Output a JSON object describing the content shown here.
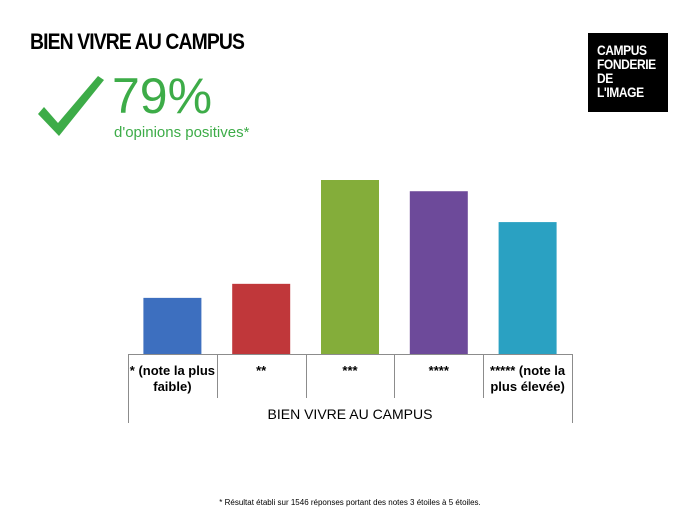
{
  "page": {
    "title": "BIEN VIVRE AU CAMPUS",
    "logo_lines": [
      "CAMPUS",
      "FONDERIE",
      "DE",
      "L'IMAGE"
    ],
    "kpi": {
      "value": "79%",
      "label": "d'opinions positives*",
      "icon": "checkmark-icon",
      "color": "#3dac48"
    },
    "footnote": "* Résultat établi sur 1546 réponses portant des notes 3 étoiles à 5 étoiles."
  },
  "chart_data": {
    "type": "bar",
    "xlabel": "BIEN VIVRE AU CAMPUS",
    "categories": [
      "* (note la plus faible)",
      "**",
      "***",
      "****",
      "***** (note la plus élevée)"
    ],
    "values": [
      10,
      12.5,
      31,
      29,
      23.5
    ],
    "ylim": [
      0,
      31
    ],
    "grid": false,
    "colors": [
      "#3d6fbf",
      "#c0373a",
      "#84ad3a",
      "#6d4a9a",
      "#2aa1c2"
    ]
  }
}
